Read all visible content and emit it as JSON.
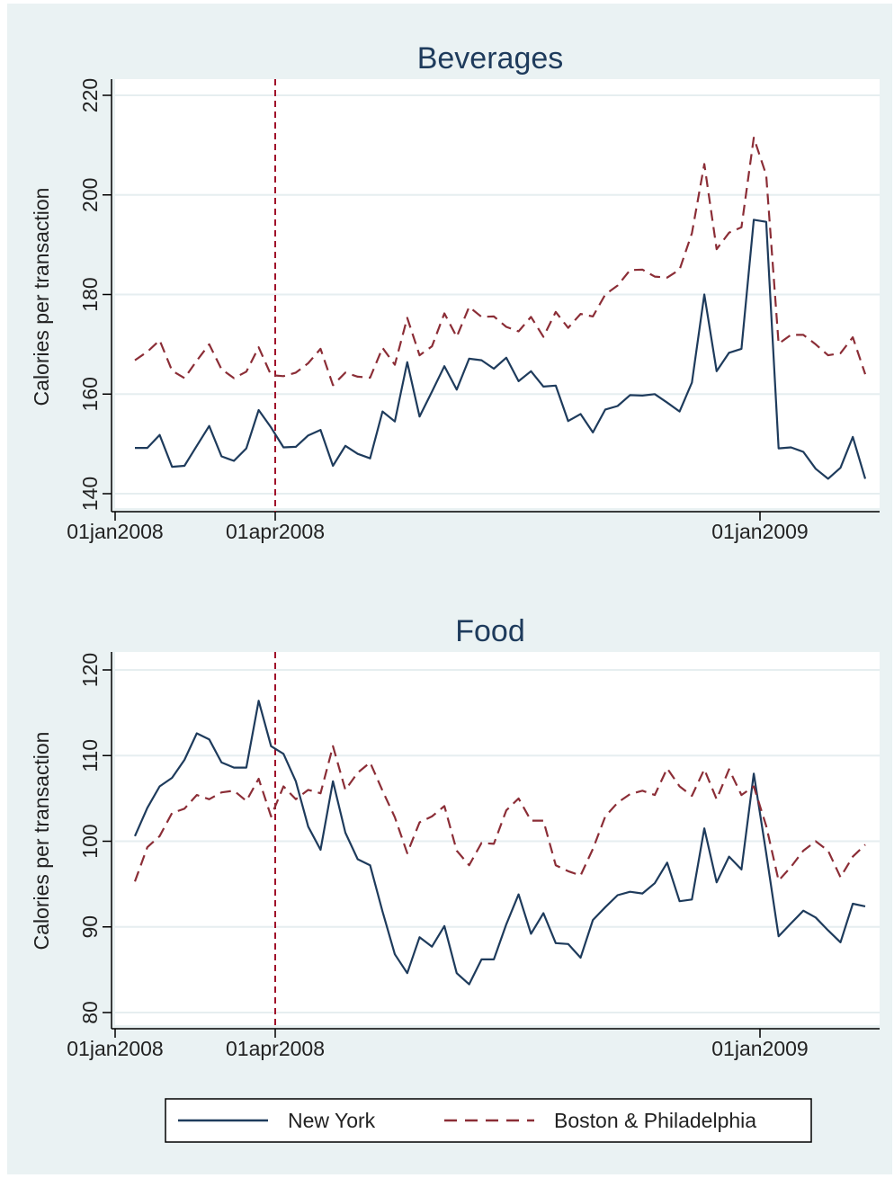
{
  "colors": {
    "new_york": "#1e3b5c",
    "boston_philadelphia": "#8b2d36",
    "event_line": "#a0102a",
    "plot_bg": "#ffffff",
    "outer_bg": "#eaf2f3",
    "grid": "#e6eef0"
  },
  "legend": {
    "position": "bottom",
    "items": [
      {
        "key": "new_york",
        "label": "New York",
        "style": "solid"
      },
      {
        "key": "boston_philadelphia",
        "label": "Boston & Philadelphia",
        "style": "dashed"
      }
    ]
  },
  "chart_data": [
    {
      "type": "line",
      "title": "Beverages",
      "xlabel": "",
      "ylabel": "Calories per transaction",
      "ylim": [
        140,
        220
      ],
      "yticks": [
        "140",
        "160",
        "180",
        "200",
        "220"
      ],
      "xticks": [
        "01jan2008",
        "01apr2008",
        "01jan2009"
      ],
      "vline": "01apr2008",
      "grid": true,
      "series": [
        {
          "name": "New York",
          "key": "new_york",
          "values": [
            149.2,
            149.2,
            151.8,
            145.4,
            145.6,
            149.6,
            153.6,
            147.5,
            146.6,
            149.1,
            156.8,
            153.3,
            149.3,
            149.4,
            151.7,
            152.8,
            145.6,
            149.6,
            148.0,
            147.1,
            156.5,
            154.5,
            166.4,
            155.5,
            160.5,
            165.6,
            160.9,
            167.1,
            166.8,
            165.1,
            167.3,
            162.6,
            164.6,
            161.5,
            161.7,
            154.6,
            156.0,
            152.3,
            156.9,
            157.6,
            159.8,
            159.7,
            160.0,
            158.3,
            156.5,
            162.3,
            180.0,
            164.6,
            168.3,
            169.1,
            195.0,
            194.6,
            149.1,
            149.3,
            148.4,
            145.0,
            143.0,
            145.2,
            151.4,
            143.0
          ]
        },
        {
          "name": "Boston & Philadelphia",
          "key": "boston_philadelphia",
          "values": [
            166.8,
            168.5,
            170.8,
            164.7,
            163.2,
            166.7,
            170.0,
            165.0,
            163.2,
            164.5,
            169.4,
            163.8,
            163.6,
            164.3,
            166.2,
            169.1,
            161.8,
            164.3,
            163.5,
            163.3,
            169.3,
            165.9,
            175.3,
            167.8,
            169.6,
            176.2,
            171.5,
            177.5,
            175.5,
            175.6,
            173.5,
            172.6,
            175.5,
            171.5,
            176.5,
            173.3,
            176.1,
            175.6,
            180.0,
            181.8,
            184.9,
            185.0,
            183.6,
            183.4,
            185.0,
            192.3,
            206.2,
            189.1,
            192.4,
            193.5,
            211.5,
            204.0,
            170.1,
            171.9,
            171.9,
            170.0,
            167.8,
            168.2,
            171.4,
            164.0
          ]
        }
      ]
    },
    {
      "type": "line",
      "title": "Food",
      "xlabel": "",
      "ylabel": "Calories per transaction",
      "ylim": [
        80,
        120
      ],
      "yticks": [
        "80",
        "90",
        "100",
        "110",
        "120"
      ],
      "xticks": [
        "01jan2008",
        "01apr2008",
        "01jan2009"
      ],
      "vline": "01apr2008",
      "grid": true,
      "series": [
        {
          "name": "New York",
          "key": "new_york",
          "values": [
            100.6,
            103.9,
            106.4,
            107.4,
            109.5,
            112.6,
            111.9,
            109.2,
            108.6,
            108.6,
            116.4,
            111.1,
            110.2,
            107.0,
            101.7,
            99.0,
            107.0,
            101.0,
            97.9,
            97.2,
            91.8,
            86.8,
            84.6,
            88.8,
            87.7,
            90.1,
            84.6,
            83.3,
            86.2,
            86.2,
            90.3,
            93.8,
            89.2,
            91.6,
            88.1,
            88.0,
            86.4,
            90.8,
            92.3,
            93.7,
            94.1,
            93.9,
            95.1,
            97.5,
            93.0,
            93.2,
            101.5,
            95.2,
            98.2,
            96.7,
            107.9,
            98.6,
            88.9,
            90.4,
            91.9,
            91.1,
            89.6,
            88.2,
            92.7,
            92.4
          ]
        },
        {
          "name": "Boston & Philadelphia",
          "key": "boston_philadelphia",
          "values": [
            95.3,
            99.3,
            100.6,
            103.3,
            103.8,
            105.4,
            104.9,
            105.7,
            105.9,
            104.7,
            107.3,
            102.9,
            106.4,
            104.9,
            106.0,
            105.6,
            111.1,
            106.0,
            108.0,
            109.2,
            105.9,
            102.8,
            98.6,
            102.2,
            102.9,
            104.1,
            98.9,
            97.2,
            99.8,
            99.7,
            103.6,
            105.0,
            102.4,
            102.4,
            97.2,
            96.5,
            96.0,
            99.1,
            102.9,
            104.5,
            105.5,
            105.9,
            105.4,
            108.5,
            106.4,
            105.3,
            108.4,
            104.9,
            108.4,
            105.4,
            106.4,
            101.8,
            95.4,
            97.0,
            98.9,
            100.0,
            98.9,
            95.8,
            98.2,
            99.6
          ]
        }
      ]
    }
  ]
}
